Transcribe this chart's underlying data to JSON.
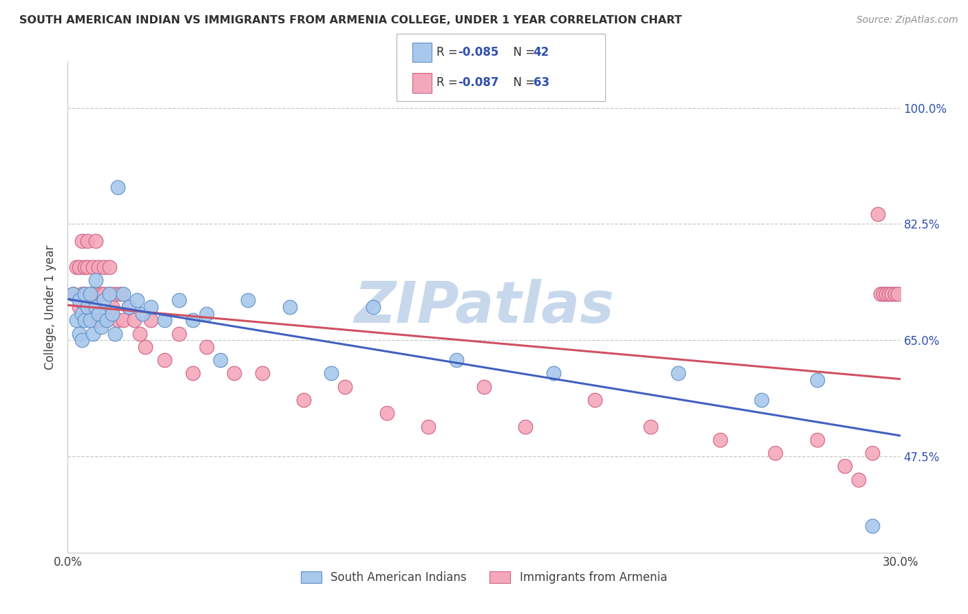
{
  "title": "SOUTH AMERICAN INDIAN VS IMMIGRANTS FROM ARMENIA COLLEGE, UNDER 1 YEAR CORRELATION CHART",
  "source": "Source: ZipAtlas.com",
  "ylabel": "College, Under 1 year",
  "xlim": [
    0.0,
    0.3
  ],
  "ylim": [
    0.33,
    1.07
  ],
  "ytick_vals": [
    0.475,
    0.65,
    0.825,
    1.0
  ],
  "ytick_labels": [
    "47.5%",
    "65.0%",
    "82.5%",
    "100.0%"
  ],
  "xtick_vals": [
    0.0,
    0.3
  ],
  "xtick_labels": [
    "0.0%",
    "30.0%"
  ],
  "legend1_r": "-0.085",
  "legend1_n": "42",
  "legend2_r": "-0.087",
  "legend2_n": "63",
  "blue_fill": "#A8C8EC",
  "blue_edge": "#6090C8",
  "pink_fill": "#F4A8BC",
  "pink_edge": "#D06080",
  "blue_line": "#4060C0",
  "pink_line": "#D05060",
  "title_color": "#303030",
  "source_color": "#909090",
  "axis_color": "#404040",
  "grid_color": "#C8C8C8",
  "watermark_color": "#C8D8EC",
  "legend_r_color": "#3050B0",
  "blue_x": [
    0.002,
    0.003,
    0.004,
    0.004,
    0.005,
    0.005,
    0.006,
    0.006,
    0.007,
    0.008,
    0.008,
    0.009,
    0.01,
    0.01,
    0.011,
    0.012,
    0.013,
    0.014,
    0.015,
    0.016,
    0.017,
    0.018,
    0.02,
    0.022,
    0.025,
    0.027,
    0.03,
    0.035,
    0.04,
    0.045,
    0.05,
    0.055,
    0.065,
    0.08,
    0.095,
    0.11,
    0.14,
    0.175,
    0.22,
    0.25,
    0.27,
    0.29
  ],
  "blue_y": [
    0.72,
    0.68,
    0.66,
    0.71,
    0.69,
    0.65,
    0.68,
    0.72,
    0.7,
    0.72,
    0.68,
    0.66,
    0.7,
    0.74,
    0.69,
    0.67,
    0.71,
    0.68,
    0.72,
    0.69,
    0.66,
    0.88,
    0.72,
    0.7,
    0.71,
    0.69,
    0.7,
    0.68,
    0.71,
    0.68,
    0.69,
    0.62,
    0.71,
    0.7,
    0.6,
    0.7,
    0.62,
    0.6,
    0.6,
    0.56,
    0.59,
    0.37
  ],
  "pink_x": [
    0.002,
    0.003,
    0.004,
    0.004,
    0.005,
    0.005,
    0.006,
    0.006,
    0.007,
    0.007,
    0.008,
    0.008,
    0.009,
    0.009,
    0.01,
    0.01,
    0.011,
    0.011,
    0.012,
    0.012,
    0.013,
    0.013,
    0.014,
    0.015,
    0.015,
    0.016,
    0.017,
    0.018,
    0.019,
    0.02,
    0.022,
    0.024,
    0.026,
    0.028,
    0.03,
    0.035,
    0.04,
    0.045,
    0.05,
    0.06,
    0.07,
    0.085,
    0.1,
    0.115,
    0.13,
    0.15,
    0.165,
    0.19,
    0.21,
    0.235,
    0.255,
    0.27,
    0.28,
    0.285,
    0.29,
    0.292,
    0.293,
    0.294,
    0.295,
    0.296,
    0.297,
    0.298,
    0.299
  ],
  "pink_y": [
    0.72,
    0.76,
    0.7,
    0.76,
    0.8,
    0.72,
    0.76,
    0.72,
    0.8,
    0.76,
    0.72,
    0.7,
    0.76,
    0.72,
    0.8,
    0.72,
    0.76,
    0.68,
    0.72,
    0.68,
    0.76,
    0.72,
    0.68,
    0.76,
    0.72,
    0.7,
    0.72,
    0.68,
    0.72,
    0.68,
    0.7,
    0.68,
    0.66,
    0.64,
    0.68,
    0.62,
    0.66,
    0.6,
    0.64,
    0.6,
    0.6,
    0.56,
    0.58,
    0.54,
    0.52,
    0.58,
    0.52,
    0.56,
    0.52,
    0.5,
    0.48,
    0.5,
    0.46,
    0.44,
    0.48,
    0.84,
    0.72,
    0.72,
    0.72,
    0.72,
    0.72,
    0.72,
    0.72
  ]
}
